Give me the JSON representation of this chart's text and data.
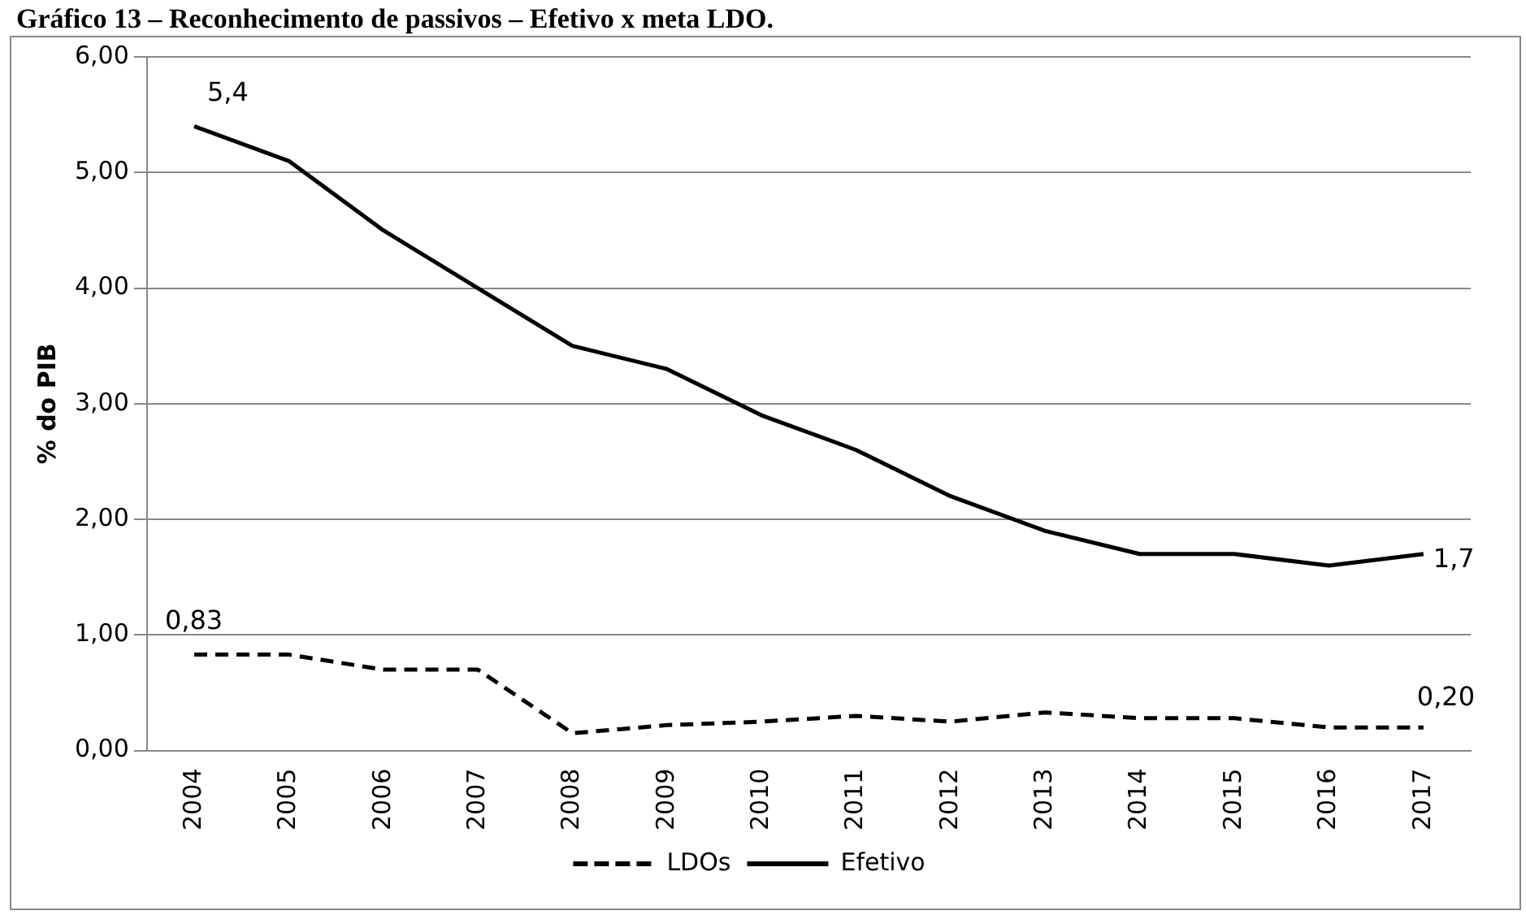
{
  "chart_data": {
    "type": "line",
    "title": "Gráfico 13 – Reconhecimento de passivos – Efetivo x meta LDO.",
    "ylabel": "% do PIB",
    "categories": [
      "2004",
      "2005",
      "2006",
      "2007",
      "2008",
      "2009",
      "2010",
      "2011",
      "2012",
      "2013",
      "2014",
      "2015",
      "2016",
      "2017"
    ],
    "series": [
      {
        "name": "LDOs",
        "color": "#000000",
        "line_style": "dashed",
        "values": [
          0.83,
          0.83,
          0.7,
          0.7,
          0.15,
          0.22,
          0.25,
          0.3,
          0.25,
          0.33,
          0.28,
          0.28,
          0.2,
          0.2
        ],
        "value_labels": [
          "0,83",
          null,
          null,
          null,
          null,
          null,
          null,
          null,
          null,
          null,
          null,
          null,
          null,
          "0,20"
        ]
      },
      {
        "name": "Efetivo",
        "color": "#000000",
        "line_style": "solid",
        "values": [
          5.4,
          5.1,
          4.5,
          4.0,
          3.5,
          3.3,
          2.9,
          2.6,
          2.2,
          1.9,
          1.7,
          1.7,
          1.6,
          1.7
        ],
        "value_labels": [
          "5,4",
          null,
          null,
          null,
          null,
          null,
          null,
          null,
          null,
          null,
          null,
          null,
          null,
          "1,7"
        ]
      }
    ],
    "ylim": [
      0,
      6
    ],
    "yticks": [
      {
        "value": 0,
        "label": "0,00"
      },
      {
        "value": 1,
        "label": "1,00"
      },
      {
        "value": 2,
        "label": "2,00"
      },
      {
        "value": 3,
        "label": "3,00"
      },
      {
        "value": 4,
        "label": "4,00"
      },
      {
        "value": 5,
        "label": "5,00"
      },
      {
        "value": 6,
        "label": "6,00"
      }
    ],
    "grid": "y",
    "legend": "bottom",
    "marker": "none"
  }
}
